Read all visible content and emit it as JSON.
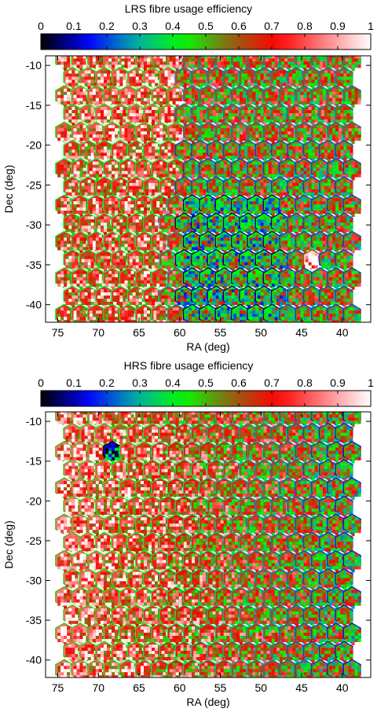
{
  "chart_data": [
    {
      "type": "heatmap",
      "title": "LRS fibre usage efficiency",
      "xlabel": "RA (deg)",
      "ylabel": "Dec (deg)",
      "xlim": [
        76.5,
        36.5
      ],
      "ylim": [
        -42.2,
        -8.8
      ],
      "x_ticks": [
        75,
        70,
        65,
        60,
        55,
        50,
        45,
        40
      ],
      "y_ticks": [
        -10,
        -15,
        -20,
        -25,
        -30,
        -35,
        -40
      ],
      "colorbar": {
        "range": [
          0,
          1
        ],
        "ticks": [
          0,
          0.1,
          0.2,
          0.3,
          0.4,
          0.5,
          0.6,
          0.7,
          0.8,
          0.9,
          1
        ],
        "colors": [
          "#000000",
          "#0000ff",
          "#00aaaa",
          "#00ff00",
          "#8b6914",
          "#ff0000",
          "#ff8080",
          "#ffffff"
        ]
      },
      "field_grid": {
        "rows": 15,
        "cols": 19
      },
      "regions": [
        {
          "area": "north-east (left) half",
          "typical_efficiency": 0.78
        },
        {
          "area": "southern centre",
          "typical_efficiency": 0.45
        },
        {
          "area": "south-west (right)",
          "typical_efficiency": 0.55
        },
        {
          "area": "bright spot near RA 43, Dec -35",
          "typical_efficiency": 0.95
        }
      ]
    },
    {
      "type": "heatmap",
      "title": "HRS fibre usage efficiency",
      "xlabel": "RA (deg)",
      "ylabel": "Dec (deg)",
      "xlim": [
        76.5,
        36.5
      ],
      "ylim": [
        -42.2,
        -8.8
      ],
      "x_ticks": [
        75,
        70,
        65,
        60,
        55,
        50,
        45,
        40
      ],
      "y_ticks": [
        -10,
        -15,
        -20,
        -25,
        -30,
        -35,
        -40
      ],
      "colorbar": {
        "range": [
          0,
          1
        ],
        "ticks": [
          0,
          0.1,
          0.2,
          0.3,
          0.4,
          0.5,
          0.6,
          0.7,
          0.8,
          0.9,
          1
        ],
        "colors": [
          "#000000",
          "#0000ff",
          "#00aaaa",
          "#00ff00",
          "#8b6914",
          "#ff0000",
          "#ff8080",
          "#ffffff"
        ]
      },
      "field_grid": {
        "rows": 15,
        "cols": 19
      },
      "regions": [
        {
          "area": "east (left) side",
          "typical_efficiency": 0.82
        },
        {
          "area": "west (right) side",
          "typical_efficiency": 0.5
        },
        {
          "area": "dark spot near RA 68, Dec -14",
          "typical_efficiency": 0.15
        }
      ]
    }
  ]
}
